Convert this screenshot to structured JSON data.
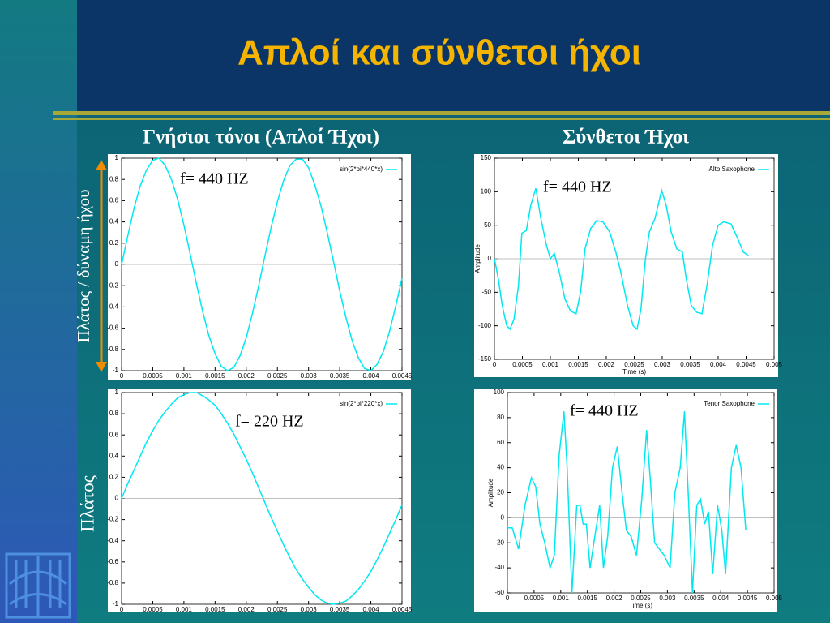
{
  "slide": {
    "title": "Απλοί και σύνθετοι ήχοι",
    "left_heading": "Γνήσιοι τόνοι (Απλοί Ήχοι)",
    "right_heading": "Σύνθετοι Ήχοι",
    "left_axis_top": "Πλάτος / δύναμη ήχου",
    "left_axis_bottom": "Πλάτος"
  },
  "chart_data": [
    {
      "type": "line",
      "annotation": "f= 440 HZ",
      "zeroline": true,
      "x": [
        0,
        0.0001,
        0.0002,
        0.0003,
        0.0004,
        0.0005,
        0.0006,
        0.0007,
        0.0008,
        0.0009,
        0.001,
        0.0011,
        0.0012,
        0.0013,
        0.0014,
        0.0015,
        0.0016,
        0.0017,
        0.0018,
        0.0019,
        0.002,
        0.0021,
        0.0022,
        0.0023,
        0.0024,
        0.0025,
        0.0026,
        0.0027,
        0.0028,
        0.0029,
        0.003,
        0.0031,
        0.0032,
        0.0033,
        0.0034,
        0.0035,
        0.0036,
        0.0037,
        0.0038,
        0.0039,
        0.004,
        0.0041,
        0.0042,
        0.0043,
        0.0044,
        0.0045
      ],
      "series": [
        {
          "name": "sin(2*pi*440*x)",
          "color": "#00e8f0",
          "values": [
            0,
            0.27,
            0.53,
            0.74,
            0.89,
            0.98,
            1.0,
            0.93,
            0.8,
            0.61,
            0.37,
            0.1,
            -0.18,
            -0.44,
            -0.67,
            -0.84,
            -0.96,
            -1.0,
            -0.97,
            -0.86,
            -0.69,
            -0.46,
            -0.2,
            0.08,
            0.35,
            0.59,
            0.79,
            0.93,
            0.99,
            0.99,
            0.91,
            0.75,
            0.55,
            0.3,
            0.03,
            -0.25,
            -0.5,
            -0.72,
            -0.88,
            -0.98,
            -1.0,
            -0.94,
            -0.82,
            -0.63,
            -0.39,
            -0.13
          ]
        }
      ],
      "xlim": [
        0,
        0.0045
      ],
      "xticks": [
        0,
        0.0005,
        0.001,
        0.0015,
        0.002,
        0.0025,
        0.003,
        0.0035,
        0.004,
        0.0045
      ],
      "ylim": [
        -1,
        1
      ],
      "yticks": [
        -1,
        -0.8,
        -0.6,
        -0.4,
        -0.2,
        0,
        0.2,
        0.4,
        0.6,
        0.8,
        1
      ]
    },
    {
      "type": "line",
      "annotation": "f= 440 HZ",
      "zeroline": true,
      "xlabel": "Time (s)",
      "ylabel": "Amplitude",
      "x": [
        0,
        7e-05,
        0.00014,
        0.00022,
        0.00028,
        0.00035,
        0.00043,
        0.00049,
        0.00057,
        0.00065,
        0.00074,
        0.00083,
        0.00093,
        0.001,
        0.00107,
        0.00116,
        0.00126,
        0.00136,
        0.00146,
        0.00154,
        0.00162,
        0.00172,
        0.00183,
        0.00194,
        0.00206,
        0.00217,
        0.00226,
        0.00238,
        0.00248,
        0.00255,
        0.00262,
        0.0027,
        0.00277,
        0.00287,
        0.00299,
        0.00307,
        0.00316,
        0.00326,
        0.00336,
        0.00343,
        0.00352,
        0.00362,
        0.00371,
        0.0038,
        0.0039,
        0.004,
        0.0041,
        0.00423,
        0.00435,
        0.00445,
        0.00454
      ],
      "series": [
        {
          "name": "Alto Saxophone",
          "color": "#00e8f0",
          "values": [
            0,
            -30,
            -70,
            -100,
            -105,
            -90,
            -40,
            38,
            42,
            80,
            105,
            60,
            20,
            0,
            8,
            -20,
            -60,
            -78,
            -82,
            -50,
            15,
            45,
            57,
            55,
            40,
            10,
            -20,
            -70,
            -100,
            -105,
            -75,
            0,
            40,
            60,
            102,
            80,
            40,
            15,
            10,
            -30,
            -70,
            -80,
            -82,
            -40,
            20,
            50,
            55,
            52,
            30,
            10,
            5
          ]
        }
      ],
      "xlim": [
        0,
        0.005
      ],
      "xticks": [
        0,
        0.0005,
        0.001,
        0.0015,
        0.002,
        0.0025,
        0.003,
        0.0035,
        0.004,
        0.0045,
        0.005
      ],
      "ylim": [
        -150,
        150
      ],
      "yticks": [
        -150,
        -100,
        -50,
        0,
        50,
        100,
        150
      ]
    },
    {
      "type": "line",
      "annotation": "f= 220 HZ",
      "zeroline": true,
      "x": [
        0,
        0.0001,
        0.0002,
        0.0003,
        0.0004,
        0.0005,
        0.0006,
        0.0007,
        0.0008,
        0.0009,
        0.001,
        0.0011,
        0.0012,
        0.0013,
        0.0014,
        0.0015,
        0.0016,
        0.0017,
        0.0018,
        0.0019,
        0.002,
        0.0021,
        0.0022,
        0.0023,
        0.0024,
        0.0025,
        0.0026,
        0.0027,
        0.0028,
        0.0029,
        0.003,
        0.0031,
        0.0032,
        0.0033,
        0.0034,
        0.0035,
        0.0036,
        0.0037,
        0.0038,
        0.0039,
        0.004,
        0.0041,
        0.0042,
        0.0043,
        0.0044,
        0.0045
      ],
      "series": [
        {
          "name": "sin(2*pi*220*x)",
          "color": "#00e8f0",
          "values": [
            0,
            0.14,
            0.27,
            0.4,
            0.53,
            0.64,
            0.74,
            0.82,
            0.89,
            0.95,
            0.98,
            1.0,
            1.0,
            0.97,
            0.93,
            0.88,
            0.8,
            0.71,
            0.61,
            0.49,
            0.37,
            0.24,
            0.1,
            -0.04,
            -0.18,
            -0.31,
            -0.44,
            -0.56,
            -0.67,
            -0.76,
            -0.84,
            -0.91,
            -0.96,
            -0.99,
            -1.0,
            -0.99,
            -0.97,
            -0.92,
            -0.86,
            -0.78,
            -0.69,
            -0.58,
            -0.46,
            -0.33,
            -0.2,
            -0.06
          ]
        }
      ],
      "xlim": [
        0,
        0.0045
      ],
      "xticks": [
        0,
        0.0005,
        0.001,
        0.0015,
        0.002,
        0.0025,
        0.003,
        0.0035,
        0.004,
        0.0045
      ],
      "ylim": [
        -1,
        1
      ],
      "yticks": [
        -1,
        -0.8,
        -0.6,
        -0.4,
        -0.2,
        0,
        0.2,
        0.4,
        0.6,
        0.8,
        1
      ]
    },
    {
      "type": "line",
      "annotation": "f= 440 HZ",
      "zeroline": true,
      "xlabel": "Time (s)",
      "ylabel": "Amplitude",
      "x": [
        0,
        9e-05,
        0.00021,
        0.00033,
        0.00045,
        0.00053,
        0.00061,
        0.0007,
        0.0008,
        0.00088,
        0.00097,
        0.00106,
        0.00112,
        0.00121,
        0.0013,
        0.00136,
        0.00142,
        0.00148,
        0.00155,
        0.00162,
        0.00173,
        0.0018,
        0.00188,
        0.00197,
        0.00206,
        0.00215,
        0.00223,
        0.00232,
        0.00242,
        0.00252,
        0.00261,
        0.00268,
        0.00276,
        0.00285,
        0.00294,
        0.00305,
        0.00314,
        0.00324,
        0.00332,
        0.00339,
        0.00347,
        0.00355,
        0.00362,
        0.0037,
        0.00377,
        0.00385,
        0.00394,
        0.00402,
        0.00409,
        0.0042,
        0.00429,
        0.00438,
        0.00447
      ],
      "series": [
        {
          "name": "Tenor Saxophone",
          "color": "#00e8f0",
          "values": [
            -8,
            -8,
            -25,
            10,
            32,
            25,
            -5,
            -20,
            -40,
            -30,
            50,
            85,
            40,
            -60,
            10,
            10,
            -5,
            -5,
            -40,
            -20,
            10,
            -40,
            -15,
            40,
            57,
            20,
            -10,
            -15,
            -30,
            15,
            70,
            30,
            -20,
            -25,
            -30,
            -40,
            20,
            40,
            85,
            20,
            -60,
            10,
            15,
            -5,
            5,
            -45,
            10,
            -10,
            -45,
            40,
            58,
            40,
            -10
          ]
        }
      ],
      "xlim": [
        0,
        0.005
      ],
      "xticks": [
        0,
        0.0005,
        0.001,
        0.0015,
        0.002,
        0.0025,
        0.003,
        0.0035,
        0.004,
        0.0045,
        0.005
      ],
      "ylim": [
        -60,
        100
      ],
      "yticks": [
        -60,
        -40,
        -20,
        0,
        20,
        40,
        60,
        80,
        100
      ]
    }
  ]
}
